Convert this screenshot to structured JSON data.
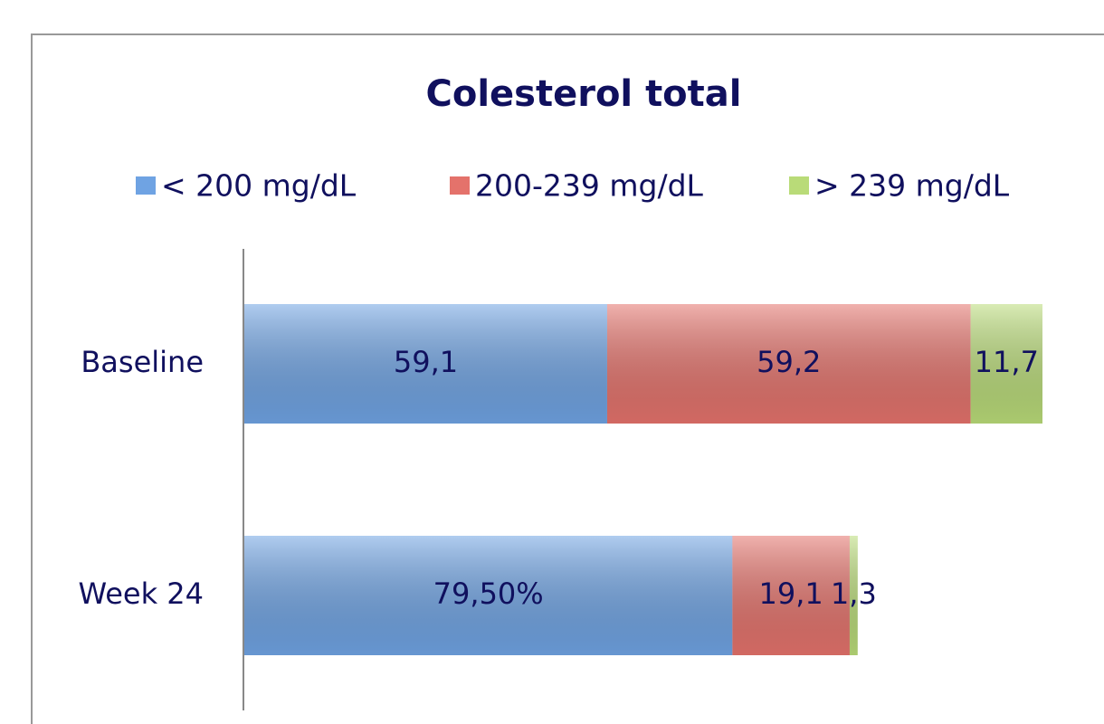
{
  "chart_data": {
    "type": "stacked-barh",
    "title": "Colesterol total",
    "categories": [
      "Baseline",
      "Week 24"
    ],
    "series": [
      {
        "name": "< 200 mg/dL",
        "color": "#6fa3e3",
        "values": [
          59.1,
          79.5
        ],
        "value_labels": [
          "59,1",
          "79,50%"
        ]
      },
      {
        "name": "200-239 mg/dL",
        "color": "#e4726b",
        "values": [
          59.2,
          19.1
        ],
        "value_labels": [
          "59,2",
          "19,1"
        ]
      },
      {
        "name": "> 239 mg/dL",
        "color": "#b9db78",
        "values": [
          11.7,
          1.3
        ],
        "value_labels": [
          "11,7",
          "1,3"
        ]
      }
    ],
    "legend": "top"
  }
}
